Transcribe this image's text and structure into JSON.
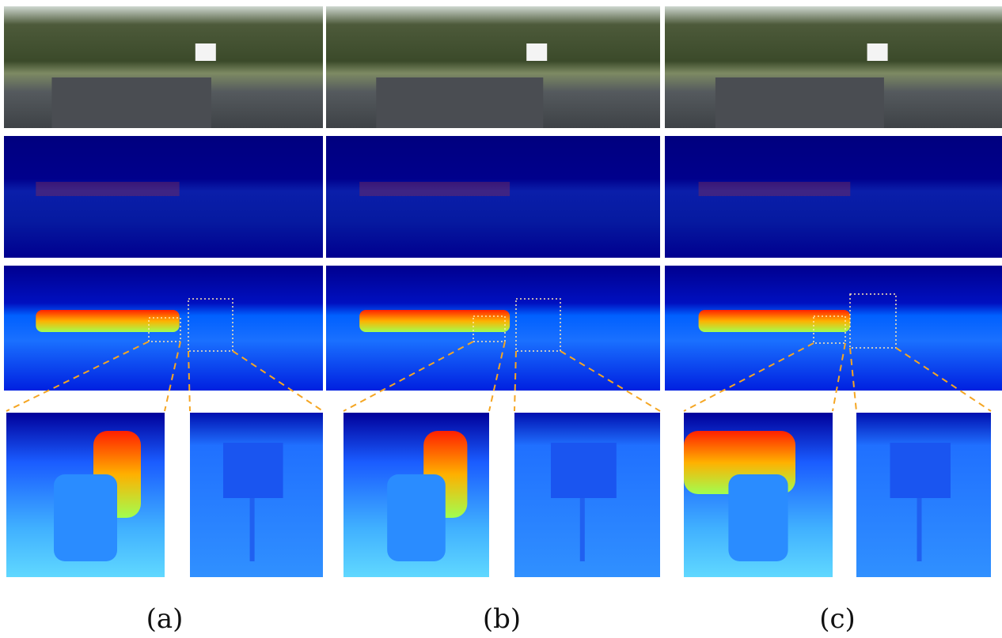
{
  "panels": {
    "labels": [
      "(a)",
      "(b)",
      "(c)"
    ]
  }
}
